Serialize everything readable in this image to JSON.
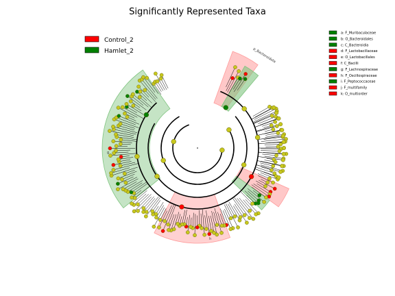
{
  "title": "Significantly Represented Taxa",
  "groups": [
    {
      "name": "Control_2",
      "color": "#ff0000"
    },
    {
      "name": "Hamlet_2",
      "color": "#008000"
    }
  ],
  "colors": {
    "control_shade": "#ff9a9a",
    "hamlet_shade": "#7fc47f",
    "node_default": "#c8c81e",
    "node_stroke": "#555500",
    "branch": "#000000"
  },
  "taxa_legend": [
    {
      "label": "a: F_Muribaculaceae",
      "group": "Hamlet_2"
    },
    {
      "label": "b: O_Bacteroidales",
      "group": "Hamlet_2"
    },
    {
      "label": "c: C_Bacteroidia",
      "group": "Hamlet_2"
    },
    {
      "label": "d: F_Lactobacillaceae",
      "group": "Control_2"
    },
    {
      "label": "e: O_Lactobacillales",
      "group": "Control_2"
    },
    {
      "label": "f: C_Bacilli",
      "group": "Control_2"
    },
    {
      "label": "g: F_Lachnospiraceae",
      "group": "Hamlet_2"
    },
    {
      "label": "h: F_Oscillospiraceae",
      "group": "Control_2"
    },
    {
      "label": "i: F_Peptococcaceae",
      "group": "Hamlet_2"
    },
    {
      "label": "j: F_multifamily",
      "group": "Control_2"
    },
    {
      "label": "k: O_multiorder",
      "group": "Control_2"
    }
  ],
  "clade_labels": {
    "bacteroidota": "p_Bacteroidota",
    "wedge_letters_top": [
      "a",
      "b",
      "c",
      "d",
      "e",
      "f"
    ],
    "wedge_letters_right": [
      "j",
      "k",
      "i"
    ],
    "side_left": "g",
    "side_bottom": "h"
  }
}
